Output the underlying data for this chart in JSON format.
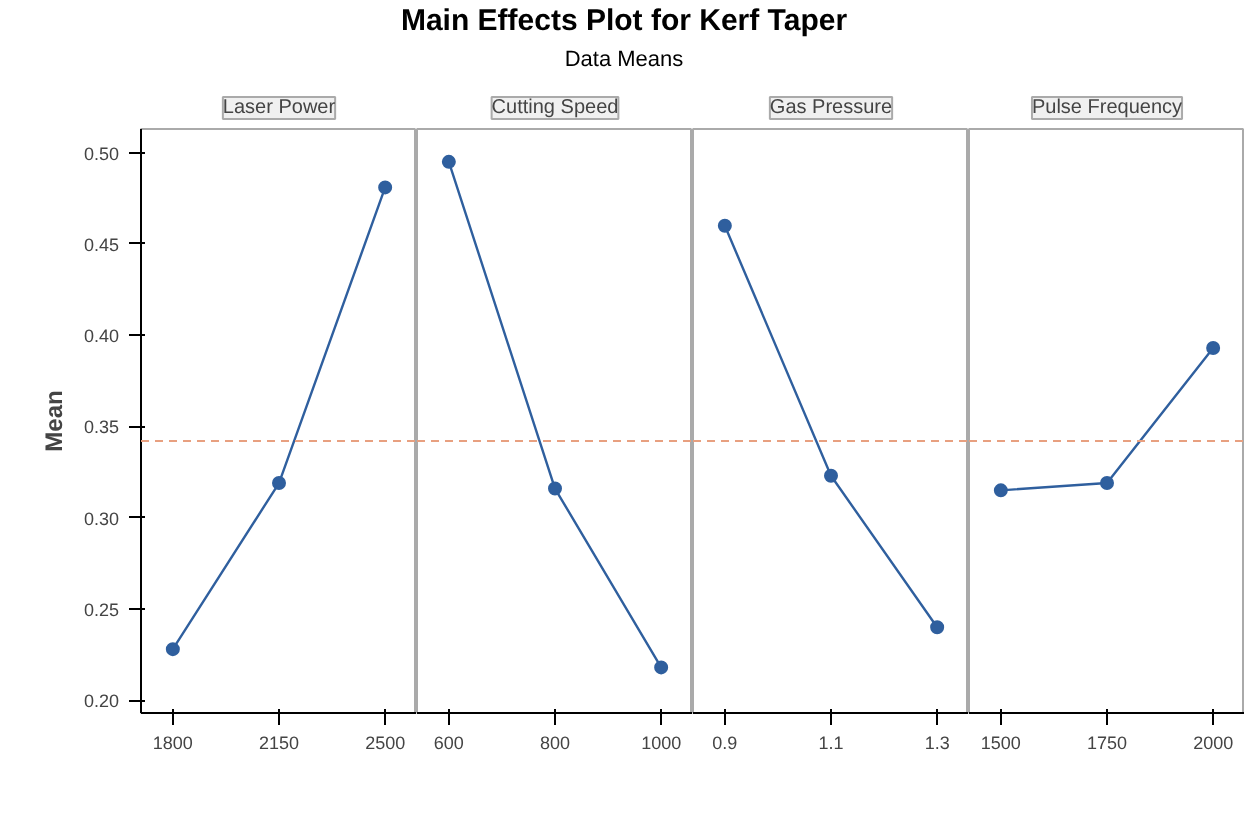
{
  "chart_data": [
    {
      "type": "line",
      "title": "Laser Power",
      "ylabel": "Mean",
      "annotations": [
        "Main Effects Plot for Kerf Taper",
        "Data Means"
      ],
      "categories": [
        "1800",
        "2150",
        "2500"
      ],
      "series": [
        {
          "color": "#2f5f9e",
          "values": [
            0.228,
            0.319,
            0.481
          ]
        }
      ],
      "ylim": [
        0.193,
        0.513
      ],
      "yticks": [
        {
          "value": 0.2,
          "label": "0.20"
        },
        0.25,
        {
          "value": 0.3,
          "label": "0.30"
        },
        0.35,
        {
          "value": 0.4,
          "label": "0.40"
        },
        0.45,
        {
          "value": 0.5,
          "label": "0.50"
        }
      ],
      "ref_lines": [
        {
          "axis": "y",
          "value": 0.342,
          "label": null,
          "color": "#e8a080",
          "line_style": "dashed"
        }
      ],
      "marker": "circle",
      "grid": false
    },
    {
      "type": "line",
      "title": "Cutting Speed",
      "categories": [
        "600",
        "800",
        "1000"
      ],
      "series": [
        {
          "color": "#2f5f9e",
          "values": [
            0.495,
            0.316,
            0.218
          ]
        }
      ],
      "ylim": [
        0.193,
        0.513
      ],
      "tick_labels": "x",
      "ref_lines": [
        {
          "axis": "y",
          "value": 0.342,
          "label": null,
          "color": "#e8a080",
          "line_style": "dashed"
        }
      ],
      "marker": "circle",
      "grid": false
    },
    {
      "type": "line",
      "title": "Gas Pressure",
      "categories": [
        "0.9",
        "1.1",
        "1.3"
      ],
      "series": [
        {
          "color": "#2f5f9e",
          "values": [
            0.46,
            0.323,
            0.24
          ]
        }
      ],
      "ylim": [
        0.193,
        0.513
      ],
      "tick_labels": "x",
      "ref_lines": [
        {
          "axis": "y",
          "value": 0.342,
          "label": null,
          "color": "#e8a080",
          "line_style": "dashed"
        }
      ],
      "marker": "circle",
      "grid": false
    },
    {
      "type": "line",
      "title": "Pulse Frequency",
      "categories": [
        "1500",
        "1750",
        "2000"
      ],
      "series": [
        {
          "color": "#2f5f9e",
          "values": [
            0.315,
            0.319,
            0.393
          ]
        }
      ],
      "ylim": [
        0.193,
        0.513
      ],
      "tick_labels": "x",
      "ref_lines": [
        {
          "axis": "y",
          "value": 0.342,
          "label": null,
          "color": "#e8a080",
          "line_style": "dashed"
        }
      ],
      "marker": "circle",
      "grid": false
    }
  ]
}
